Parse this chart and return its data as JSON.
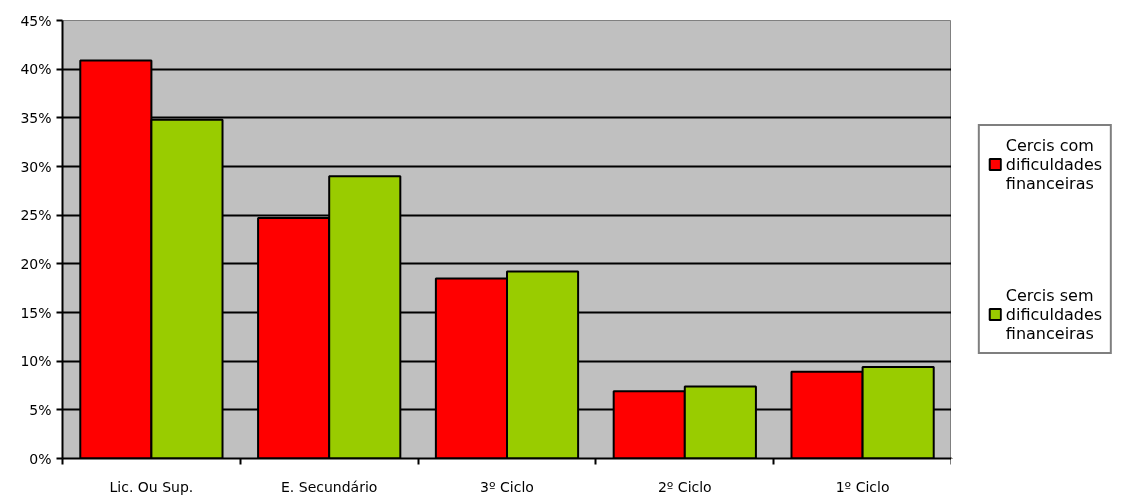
{
  "chart_data": {
    "type": "bar",
    "categories": [
      "Lic. Ou Sup.",
      "E. Secundário",
      "3º Ciclo",
      "2º Ciclo",
      "1º Ciclo"
    ],
    "series": [
      {
        "name": "Cercis com dificuldades financeiras",
        "color": "#ff0000",
        "values": [
          40.9,
          24.7,
          18.5,
          6.9,
          8.9
        ]
      },
      {
        "name": "Cercis sem dificuldades financeiras",
        "color": "#99cc00",
        "values": [
          34.8,
          29.0,
          19.2,
          7.4,
          9.4
        ]
      }
    ],
    "ylim": [
      0,
      45
    ],
    "yticks": [
      {
        "value": 0,
        "label": "0%"
      },
      {
        "value": 5,
        "label": "5%"
      },
      {
        "value": 10,
        "label": "10%"
      },
      {
        "value": 15,
        "label": "15%"
      },
      {
        "value": 20,
        "label": "20%"
      },
      {
        "value": 25,
        "label": "25%"
      },
      {
        "value": 30,
        "label": "30%"
      },
      {
        "value": 35,
        "label": "35%"
      },
      {
        "value": 40,
        "label": "40%"
      },
      {
        "value": 45,
        "label": "45%"
      }
    ],
    "grid": "y",
    "legend": "right"
  }
}
